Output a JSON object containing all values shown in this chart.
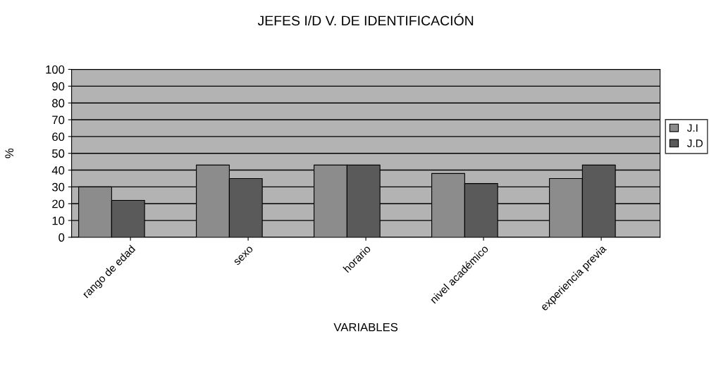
{
  "chart_data": {
    "type": "bar",
    "title": "JEFES I/D V. DE IDENTIFICACIÓN",
    "xlabel": "VARIABLES",
    "ylabel": "%",
    "categories": [
      "rango de edad",
      "sexo",
      "horario",
      "nivel académico",
      "experiencia previa"
    ],
    "series": [
      {
        "name": "J.I",
        "color": "#8c8c8c",
        "values": [
          30,
          43,
          43,
          38,
          35
        ]
      },
      {
        "name": "J.D",
        "color": "#5a5a5a",
        "values": [
          22,
          35,
          43,
          32,
          43
        ]
      }
    ],
    "ylim": [
      0,
      100
    ],
    "yticks": [
      0,
      10,
      20,
      30,
      40,
      50,
      60,
      70,
      80,
      90,
      100
    ],
    "grid": "y",
    "legend": "right"
  }
}
